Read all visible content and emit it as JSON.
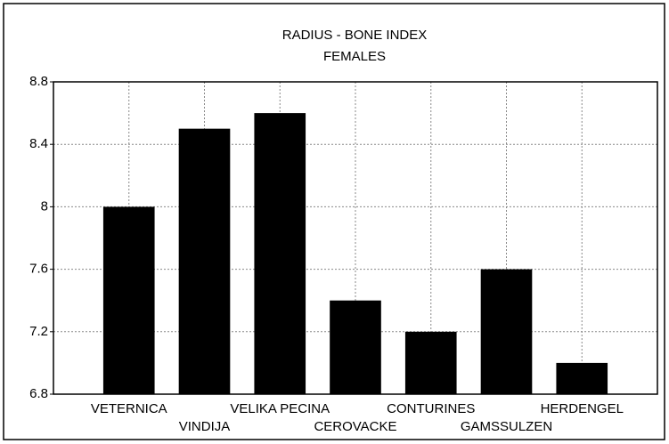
{
  "chart_data": {
    "type": "bar",
    "title": "RADIUS - BONE INDEX",
    "subtitle": "FEMALES",
    "categories": [
      "VETERNICA",
      "VINDIJA",
      "VELIKA PECINA",
      "CEROVACKE",
      "CONTURINES",
      "GAMSSULZEN",
      "HERDENGEL"
    ],
    "values": [
      8.0,
      8.5,
      8.6,
      7.4,
      7.2,
      7.6,
      7.0
    ],
    "color": "#000000",
    "ylim": [
      6.8,
      8.8
    ],
    "yticks": [
      6.8,
      7.2,
      7.6,
      8,
      8.4,
      8.8
    ],
    "grid": true
  }
}
